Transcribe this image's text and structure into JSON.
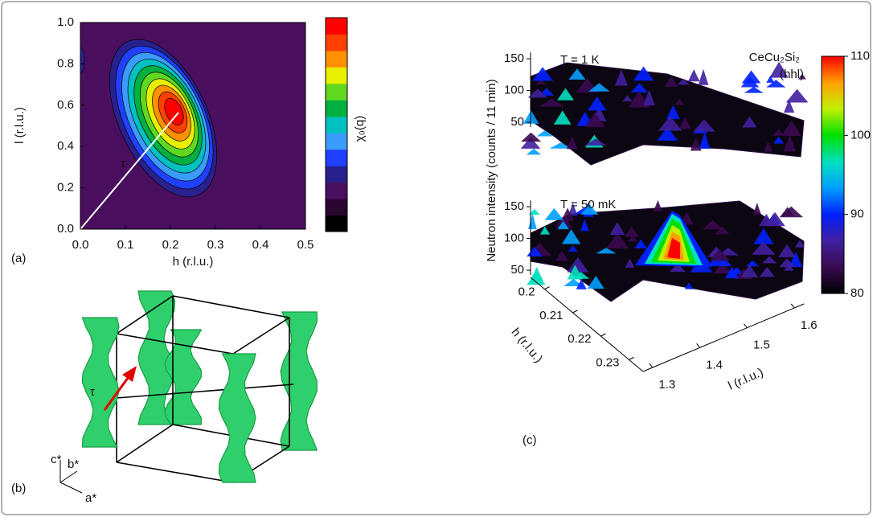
{
  "chart_data": [
    {
      "type": "contour",
      "panel_label": "(a)",
      "xlabel": "h (r.l.u.)",
      "ylabel": "l (r.l.u.)",
      "colorbar_label": "χ₀(q)",
      "annotation": "τ",
      "xlim": [
        0,
        0.5
      ],
      "xticks": [
        {
          "value": 0,
          "label": "0.0"
        },
        0.1,
        0.2,
        0.3,
        0.4,
        0.5
      ],
      "ylim": [
        0,
        1
      ],
      "yticks": [
        {
          "value": 0,
          "label": "0.0"
        },
        0.2,
        0.4,
        0.6,
        0.8,
        {
          "value": 1,
          "label": "1.0"
        }
      ],
      "colors": [
        "#000000",
        "#2a0630",
        "#4a0e5e",
        "#28208c",
        "#2040ff",
        "#3a9cff",
        "#00c0c0",
        "#00b040",
        "#60d820",
        "#e8f000",
        "#ff9000",
        "#ff4000",
        "#ff0000"
      ]
    },
    {
      "type": "surface3d",
      "panel_label": "(c)",
      "zlabel": "Neutron intensity (counts / 11 min)",
      "xlabel": "h (r.l.u.)",
      "ylabel": "l (r.l.u.)",
      "compound": "CeCu₂Si₂",
      "direction": "(hhl)",
      "panels": [
        "T = 1 K",
        "T = 50 mK"
      ],
      "zlim": [
        40,
        160
      ],
      "zticks": [
        50,
        100,
        150
      ],
      "xlim": [
        0.195,
        0.235
      ],
      "xticks": [
        0.2,
        0.21,
        0.22,
        0.23
      ],
      "ylim": [
        1.28,
        1.62
      ],
      "yticks": [
        1.3,
        1.4,
        1.5,
        1.6
      ],
      "clim": [
        80,
        110
      ],
      "cticks": [
        80,
        90,
        100,
        110
      ],
      "colors": [
        "#000000",
        "#3a0a50",
        "#4020a0",
        "#0020ff",
        "#00a0ff",
        "#00e0c0",
        "#00e000",
        "#c0f000",
        "#ffa000",
        "#ff0000"
      ]
    }
  ],
  "diagram": {
    "panel_label": "(b)",
    "annotation": "τ",
    "axes": [
      "a*",
      "b*",
      "c*"
    ]
  }
}
